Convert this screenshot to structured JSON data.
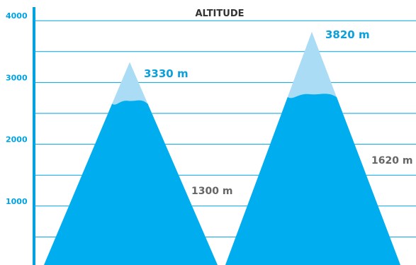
{
  "chart_data": {
    "type": "area",
    "title": "ALTITUDE",
    "ylim": [
      0,
      4000
    ],
    "yticks": [
      "1000",
      "2000",
      "3000",
      "4000"
    ],
    "grid": true,
    "mountains": [
      {
        "peak": 3330,
        "peak_label": "3330 m",
        "lower_value": 1300,
        "lower_label": "1300 m"
      },
      {
        "peak": 3820,
        "peak_label": "3820 m",
        "lower_value": 1620,
        "lower_label": "1620 m"
      }
    ],
    "colors": {
      "axis": "#00a3e0",
      "mountain": "#00aeef",
      "snow": "#aadcf5",
      "peak_label": "#0aa0dc",
      "lower_label": "#666666",
      "title": "#333333"
    }
  }
}
